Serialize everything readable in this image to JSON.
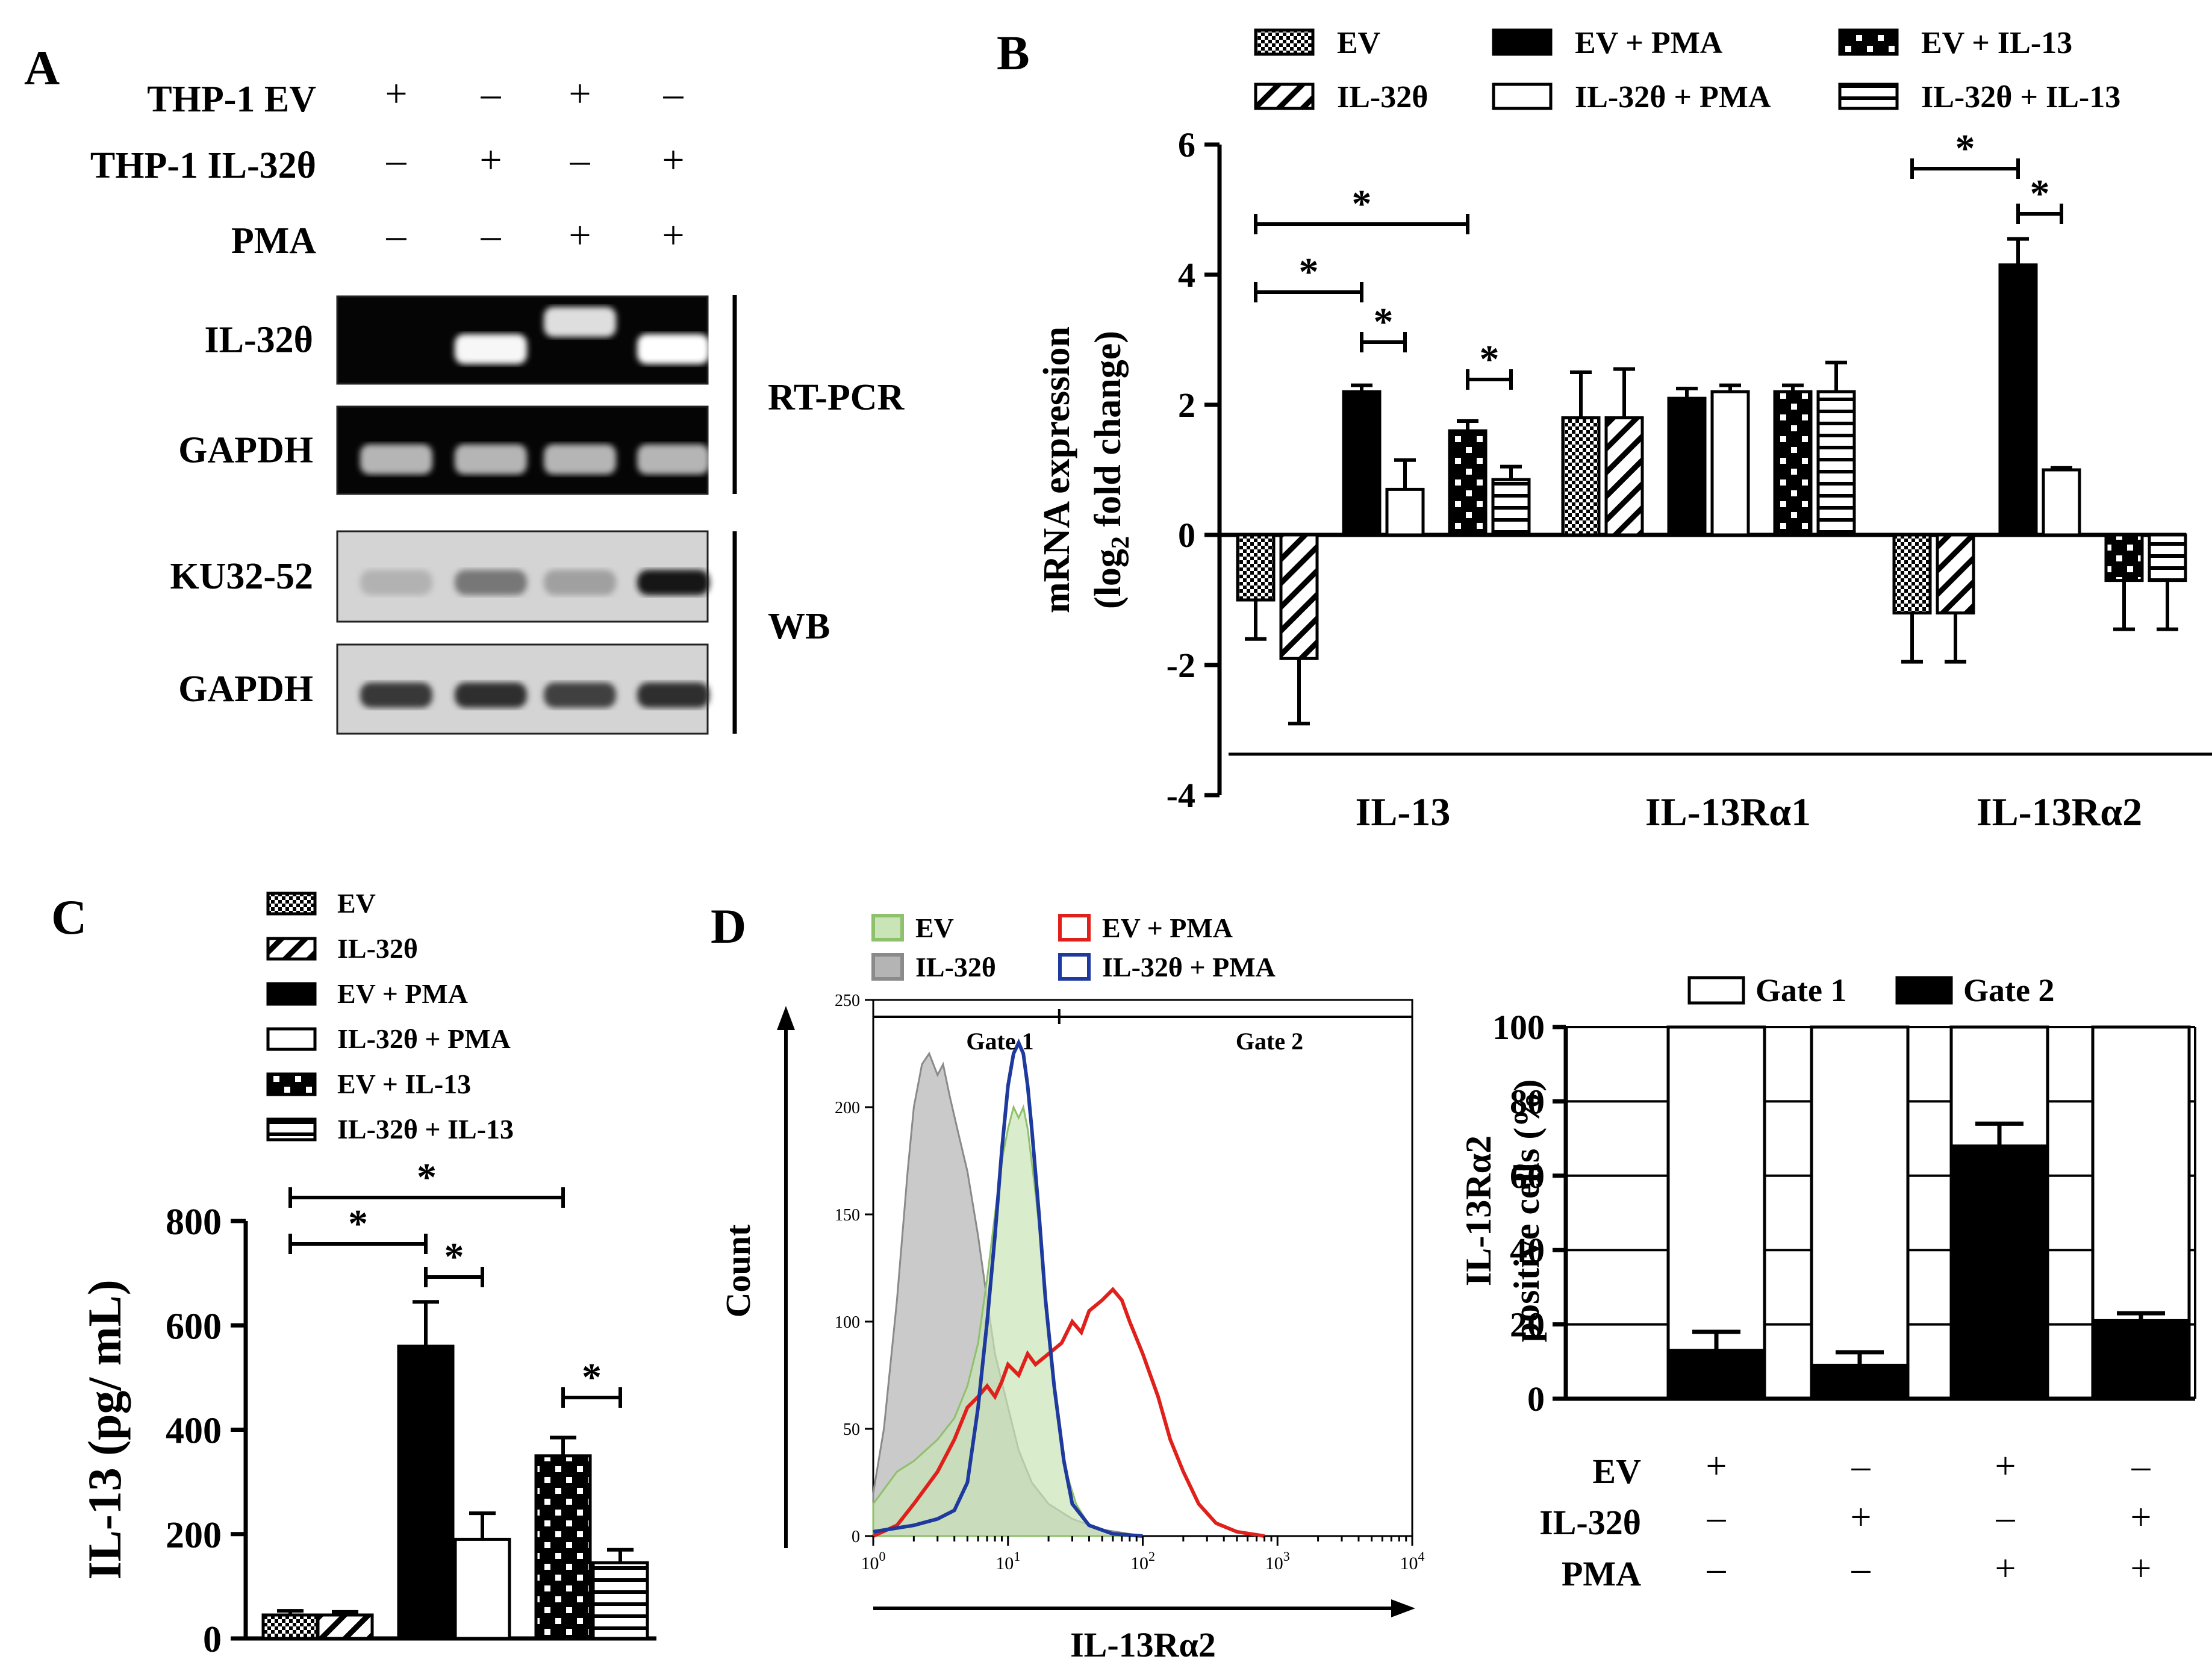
{
  "panel_labels": {
    "a": "A",
    "b": "B",
    "c": "C",
    "d": "D"
  },
  "panel_a": {
    "condition_rows": [
      {
        "label": "THP-1 EV",
        "signs": [
          "+",
          "–",
          "+",
          "–"
        ]
      },
      {
        "label": "THP-1 IL-32θ",
        "signs": [
          "–",
          "+",
          "–",
          "+"
        ]
      },
      {
        "label": "PMA",
        "signs": [
          "–",
          "–",
          "+",
          "+"
        ]
      }
    ],
    "blots": [
      {
        "label": "IL-32θ",
        "group": "rt",
        "bands": [
          0.0,
          0.95,
          0.8,
          1.0
        ]
      },
      {
        "label": "GAPDH",
        "group": "rt",
        "bands": [
          0.55,
          0.55,
          0.55,
          0.55
        ]
      },
      {
        "label": "KU32-52",
        "group": "wb",
        "bands": [
          0.12,
          0.45,
          0.22,
          1.0
        ]
      },
      {
        "label": "GAPDH",
        "group": "wb",
        "bands": [
          0.8,
          0.85,
          0.75,
          0.85
        ]
      }
    ],
    "group_labels": {
      "rt": "RT-PCR",
      "wb": "WB"
    }
  },
  "chart_data": [
    {
      "id": "B",
      "type": "bar",
      "categories": [
        "IL-13",
        "IL-13Rα1",
        "IL-13Rα2"
      ],
      "series": [
        {
          "name": "EV",
          "pattern": "dots",
          "values": [
            -1.0,
            1.8,
            -1.2
          ],
          "errors": [
            0.6,
            0.7,
            0.75
          ]
        },
        {
          "name": "IL-32θ",
          "pattern": "diag",
          "values": [
            -1.9,
            1.8,
            -1.2
          ],
          "errors": [
            1.0,
            0.75,
            0.75
          ]
        },
        {
          "name": "EV + PMA",
          "pattern": "black",
          "values": [
            2.2,
            2.1,
            4.15
          ],
          "errors": [
            0.1,
            0.15,
            0.4
          ]
        },
        {
          "name": "IL-32θ + PMA",
          "pattern": "white",
          "values": [
            0.7,
            2.2,
            1.0
          ],
          "errors": [
            0.45,
            0.1,
            0.03
          ]
        },
        {
          "name": "EV + IL-13",
          "pattern": "checker",
          "values": [
            1.6,
            2.2,
            -0.7
          ],
          "errors": [
            0.15,
            0.1,
            0.75
          ]
        },
        {
          "name": "IL-32θ + IL-13",
          "pattern": "hlines",
          "values": [
            0.85,
            2.2,
            -0.7
          ],
          "errors": [
            0.2,
            0.45,
            0.75
          ]
        }
      ],
      "ylabel": "mRNA expression",
      "ylabel_sub": "(log",
      "ylabel_subscript": "2",
      "ylabel_tail": " fold change)",
      "ylim": [
        -4,
        6
      ],
      "yticks": [
        6,
        4,
        2,
        0,
        -2,
        -4
      ],
      "significance": [
        {
          "category": 0,
          "from": 0,
          "to": 2,
          "star": "*"
        },
        {
          "category": 0,
          "from": 0,
          "to": 4,
          "star": "*"
        },
        {
          "category": 0,
          "from": 2,
          "to": 3,
          "star": "*"
        },
        {
          "category": 0,
          "from": 4,
          "to": 5,
          "star": "*"
        },
        {
          "category": 2,
          "from": 0,
          "to": 2,
          "star": "*"
        },
        {
          "category": 2,
          "from": 2,
          "to": 3,
          "star": "*"
        }
      ]
    },
    {
      "id": "C",
      "type": "bar",
      "categories": [
        "EV",
        "IL-32θ",
        "EV + PMA",
        "IL-32θ + PMA",
        "EV + IL-13",
        "IL-32θ + IL-13"
      ],
      "patterns": [
        "dots",
        "diag",
        "black",
        "white",
        "checker",
        "hlines"
      ],
      "values": [
        45,
        45,
        560,
        190,
        350,
        145
      ],
      "errors": [
        8,
        6,
        85,
        50,
        35,
        25
      ],
      "ylabel": "IL-13 (pg/ mL)",
      "ylim": [
        0,
        800
      ],
      "yticks": [
        800,
        600,
        400,
        200,
        0
      ],
      "significance": [
        {
          "from": 0,
          "to": 2,
          "star": "*"
        },
        {
          "from": 0,
          "to": 4,
          "star": "*"
        },
        {
          "from": 2,
          "to": 3,
          "star": "*"
        },
        {
          "from": 4,
          "to": 5,
          "star": "*"
        }
      ]
    },
    {
      "id": "D-hist",
      "type": "line",
      "xscale": "log",
      "xlim": [
        1,
        10000
      ],
      "ylim": [
        0,
        250
      ],
      "yticks": [
        0,
        50,
        100,
        150,
        200,
        250
      ],
      "xticks": [
        {
          "base": "10",
          "exp": "0"
        },
        {
          "base": "10",
          "exp": "1"
        },
        {
          "base": "10",
          "exp": "2"
        },
        {
          "base": "10",
          "exp": "3"
        },
        {
          "base": "10",
          "exp": "4"
        }
      ],
      "xlabel": "IL-13Rα2",
      "ylabel": "Count",
      "gates": [
        {
          "label": "Gate 1",
          "from_x": 1,
          "to_x": 24
        },
        {
          "label": "Gate 2",
          "from_x": 24,
          "to_x": 10000
        }
      ],
      "gate_divider_x": 24,
      "series": [
        {
          "name": "EV",
          "style": "filled-green",
          "color": "#8fc06c",
          "fill": "#c9e4b6",
          "points": [
            [
              1,
              15
            ],
            [
              1.5,
              30
            ],
            [
              2,
              35
            ],
            [
              3,
              45
            ],
            [
              4,
              55
            ],
            [
              5,
              70
            ],
            [
              6,
              90
            ],
            [
              7,
              120
            ],
            [
              8,
              150
            ],
            [
              9,
              175
            ],
            [
              10,
              190
            ],
            [
              11,
              200
            ],
            [
              12,
              195
            ],
            [
              13,
              200
            ],
            [
              14,
              190
            ],
            [
              16,
              160
            ],
            [
              18,
              130
            ],
            [
              20,
              100
            ],
            [
              23,
              60
            ],
            [
              27,
              30
            ],
            [
              32,
              15
            ],
            [
              40,
              5
            ],
            [
              60,
              1
            ],
            [
              100,
              0
            ]
          ]
        },
        {
          "name": "IL-32θ",
          "style": "filled-gray",
          "color": "#8a8a8a",
          "fill": "#b4b4b4",
          "points": [
            [
              1,
              20
            ],
            [
              1.2,
              50
            ],
            [
              1.5,
              110
            ],
            [
              1.8,
              170
            ],
            [
              2,
              200
            ],
            [
              2.3,
              220
            ],
            [
              2.6,
              225
            ],
            [
              3,
              215
            ],
            [
              3.3,
              220
            ],
            [
              3.7,
              205
            ],
            [
              4.2,
              190
            ],
            [
              5,
              170
            ],
            [
              6,
              140
            ],
            [
              7,
              110
            ],
            [
              8,
              85
            ],
            [
              10,
              60
            ],
            [
              12,
              40
            ],
            [
              15,
              25
            ],
            [
              20,
              15
            ],
            [
              30,
              8
            ],
            [
              50,
              3
            ],
            [
              100,
              0
            ]
          ]
        },
        {
          "name": "EV + PMA",
          "style": "line",
          "color": "#e0201b",
          "points": [
            [
              1,
              0
            ],
            [
              1.5,
              5
            ],
            [
              2,
              15
            ],
            [
              3,
              30
            ],
            [
              4,
              45
            ],
            [
              5,
              60
            ],
            [
              6,
              65
            ],
            [
              7,
              70
            ],
            [
              8,
              65
            ],
            [
              9,
              72
            ],
            [
              10,
              80
            ],
            [
              12,
              75
            ],
            [
              14,
              85
            ],
            [
              16,
              80
            ],
            [
              20,
              85
            ],
            [
              25,
              90
            ],
            [
              30,
              100
            ],
            [
              35,
              95
            ],
            [
              40,
              105
            ],
            [
              50,
              110
            ],
            [
              60,
              115
            ],
            [
              70,
              110
            ],
            [
              80,
              100
            ],
            [
              100,
              85
            ],
            [
              130,
              65
            ],
            [
              160,
              45
            ],
            [
              200,
              30
            ],
            [
              260,
              15
            ],
            [
              350,
              6
            ],
            [
              500,
              2
            ],
            [
              800,
              0
            ]
          ]
        },
        {
          "name": "IL-32θ + PMA",
          "style": "line",
          "color": "#1f3a9e",
          "points": [
            [
              1,
              2
            ],
            [
              2,
              5
            ],
            [
              3,
              8
            ],
            [
              4,
              12
            ],
            [
              5,
              25
            ],
            [
              6,
              60
            ],
            [
              7,
              100
            ],
            [
              8,
              140
            ],
            [
              9,
              180
            ],
            [
              10,
              210
            ],
            [
              11,
              225
            ],
            [
              12,
              230
            ],
            [
              13,
              225
            ],
            [
              14,
              210
            ],
            [
              15,
              190
            ],
            [
              17,
              150
            ],
            [
              19,
              110
            ],
            [
              22,
              70
            ],
            [
              26,
              35
            ],
            [
              30,
              15
            ],
            [
              40,
              5
            ],
            [
              60,
              1
            ],
            [
              100,
              0
            ]
          ]
        }
      ]
    },
    {
      "id": "D-bar",
      "type": "bar",
      "stacked": true,
      "categories": [
        "EV",
        "IL-32θ",
        "EV + PMA",
        "IL-32θ + PMA"
      ],
      "series": [
        {
          "name": "Gate 1",
          "pattern": "white",
          "values": [
            87,
            91,
            32,
            79
          ]
        },
        {
          "name": "Gate 2",
          "pattern": "black",
          "values": [
            13,
            9,
            68,
            21
          ],
          "errors": [
            5,
            3.5,
            6,
            2
          ]
        }
      ],
      "ylabel": "IL-13Rα2",
      "ylabel2": "positive cells (%)",
      "ylim": [
        0,
        100
      ],
      "yticks": [
        100,
        80,
        60,
        40,
        20,
        0
      ],
      "condition_rows": [
        {
          "label": "EV",
          "signs": [
            "+",
            "–",
            "+",
            "–"
          ]
        },
        {
          "label": "IL-32θ",
          "signs": [
            "–",
            "+",
            "–",
            "+"
          ]
        },
        {
          "label": "PMA",
          "signs": [
            "–",
            "–",
            "+",
            "+"
          ]
        }
      ]
    }
  ]
}
